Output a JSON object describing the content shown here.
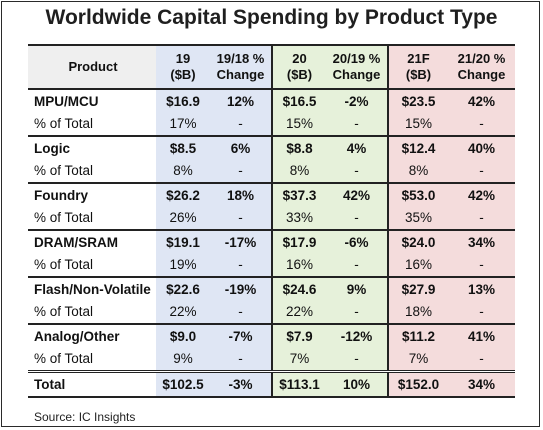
{
  "chart_data": {
    "type": "table",
    "title": "Worldwide Capital Spending by Product Type",
    "columns": [
      "Product",
      "19 ($B)",
      "19/18 % Change",
      "20 ($B)",
      "20/19 % Change",
      "21F ($B)",
      "21/20 % Change"
    ],
    "header_lines": [
      [
        "Product",
        ""
      ],
      [
        "19",
        "($B)"
      ],
      [
        "19/18 %",
        "Change"
      ],
      [
        "20",
        "($B)"
      ],
      [
        "20/19 %",
        "Change"
      ],
      [
        "21F",
        "($B)"
      ],
      [
        "21/20 %",
        "Change"
      ]
    ],
    "rows": [
      {
        "product": "MPU/MCU",
        "y19": "$16.9",
        "c19": "12%",
        "y20": "$16.5",
        "c20": "-2%",
        "y21": "$23.5",
        "c21": "42%",
        "share_label": "% of Total",
        "s19": "17%",
        "sc19": "-",
        "s20": "15%",
        "sc20": "-",
        "s21": "15%",
        "sc21": "-"
      },
      {
        "product": "Logic",
        "y19": "$8.5",
        "c19": "6%",
        "y20": "$8.8",
        "c20": "4%",
        "y21": "$12.4",
        "c21": "40%",
        "share_label": "% of Total",
        "s19": "8%",
        "sc19": "-",
        "s20": "8%",
        "sc20": "-",
        "s21": "8%",
        "sc21": "-"
      },
      {
        "product": "Foundry",
        "y19": "$26.2",
        "c19": "18%",
        "y20": "$37.3",
        "c20": "42%",
        "y21": "$53.0",
        "c21": "42%",
        "share_label": "% of Total",
        "s19": "26%",
        "sc19": "-",
        "s20": "33%",
        "sc20": "-",
        "s21": "35%",
        "sc21": "-"
      },
      {
        "product": "DRAM/SRAM",
        "y19": "$19.1",
        "c19": "-17%",
        "y20": "$17.9",
        "c20": "-6%",
        "y21": "$24.0",
        "c21": "34%",
        "share_label": "% of Total",
        "s19": "19%",
        "sc19": "-",
        "s20": "16%",
        "sc20": "-",
        "s21": "16%",
        "sc21": "-"
      },
      {
        "product": "Flash/Non-Volatile",
        "y19": "$22.6",
        "c19": "-19%",
        "y20": "$24.6",
        "c20": "9%",
        "y21": "$27.9",
        "c21": "13%",
        "share_label": "% of Total",
        "s19": "22%",
        "sc19": "-",
        "s20": "22%",
        "sc20": "-",
        "s21": "18%",
        "sc21": "-"
      },
      {
        "product": "Analog/Other",
        "y19": "$9.0",
        "c19": "-7%",
        "y20": "$7.9",
        "c20": "-12%",
        "y21": "$11.2",
        "c21": "41%",
        "share_label": "% of Total",
        "s19": "9%",
        "sc19": "-",
        "s20": "7%",
        "sc20": "-",
        "s21": "7%",
        "sc21": "-"
      }
    ],
    "total": {
      "product": "Total",
      "y19": "$102.5",
      "c19": "-3%",
      "y20": "$113.1",
      "c20": "10%",
      "y21": "$152.0",
      "c21": "34%"
    },
    "source": "Source: IC Insights",
    "colors": {
      "col_2019": "#dfe6f4",
      "col_2020": "#e6f1da",
      "col_2021": "#f4dcdc",
      "header": "#efefef"
    }
  }
}
